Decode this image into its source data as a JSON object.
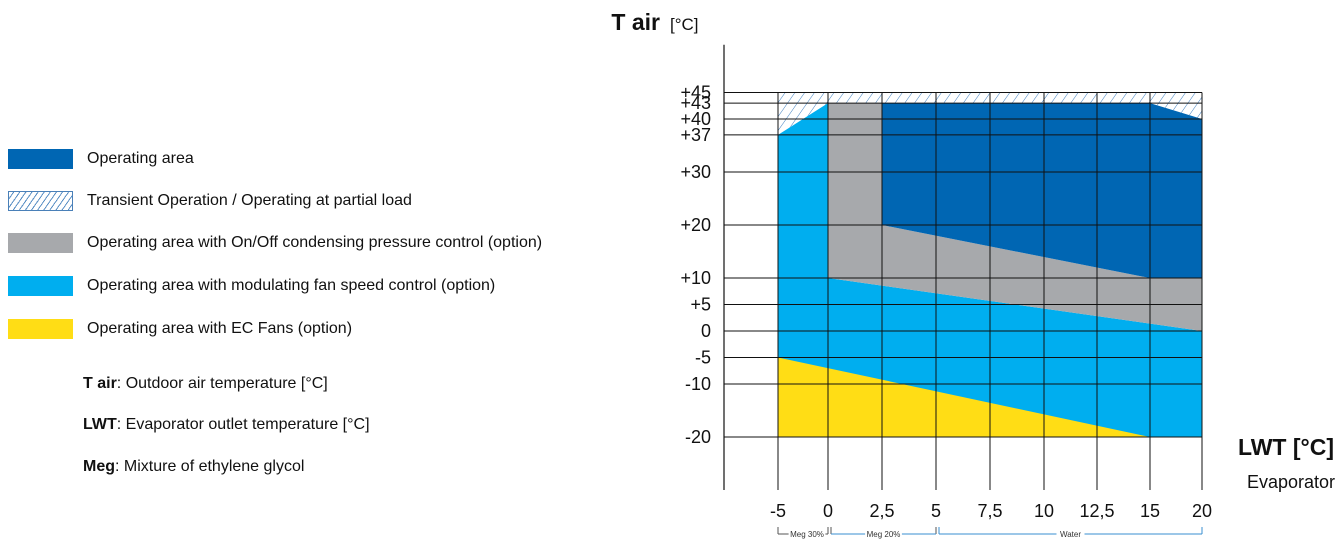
{
  "legend": {
    "items": [
      {
        "label": "Operating area",
        "color": "#0066b3"
      },
      {
        "label": "Transient Operation / Operating at partial load",
        "pattern": "hatch"
      },
      {
        "label": "Operating area with On/Off condensing pressure control (option)",
        "color": "#a7a9ac"
      },
      {
        "label": "Operating area with modulating fan speed control (option)",
        "color": "#00aeef"
      },
      {
        "label": "Operating area with EC Fans (option)",
        "color": "#ffdd15"
      }
    ],
    "notes": [
      {
        "term": "T air",
        "text": ": Outdoor air temperature [°C]"
      },
      {
        "term": "LWT",
        "text": ": Evaporator outlet temperature [°C]"
      },
      {
        "term": "Meg",
        "text": ": Mixture of ethylene glycol"
      }
    ]
  },
  "chart_data": {
    "type": "area",
    "y_title": "T air",
    "y_unit": "[°C]",
    "x_title": "LWT [°C]",
    "x_subtitle": "Evaporator",
    "x_ticks": [
      -5,
      0,
      2.5,
      5,
      7.5,
      10,
      12.5,
      15,
      20
    ],
    "x_tick_labels": [
      "-5",
      "0",
      "2,5",
      "5",
      "7,5",
      "10",
      "12,5",
      "15",
      "20"
    ],
    "y_ticks": [
      45,
      43,
      40,
      37,
      30,
      20,
      10,
      5,
      0,
      -5,
      -10,
      -20
    ],
    "y_tick_labels": [
      "+45",
      "+43",
      "+40",
      "+37",
      "+30",
      "+20",
      "+10",
      "+5",
      "0",
      "-5",
      "-10",
      "-20"
    ],
    "ylim": [
      -30,
      54
    ],
    "grid": true,
    "regions": [
      {
        "label": "Transient Operation / Operating at partial load",
        "pattern": "hatch",
        "points": [
          [
            -5,
            37
          ],
          [
            -5,
            45
          ],
          [
            20,
            45
          ],
          [
            20,
            40
          ],
          [
            15,
            43
          ],
          [
            0,
            43
          ]
        ]
      },
      {
        "label": "Operating area with modulating fan speed control (option)",
        "color": "#00aeef",
        "points": [
          [
            -5,
            -20
          ],
          [
            -5,
            37
          ],
          [
            0,
            43
          ],
          [
            0,
            10
          ],
          [
            20,
            0
          ],
          [
            20,
            -20
          ]
        ]
      },
      {
        "label": "Operating area with On/Off condensing pressure control (option)",
        "color": "#a7a9ac",
        "points": [
          [
            0,
            10
          ],
          [
            0,
            43
          ],
          [
            2.5,
            43
          ],
          [
            2.5,
            20
          ],
          [
            15,
            10
          ],
          [
            20,
            10
          ],
          [
            20,
            0
          ]
        ]
      },
      {
        "label": "Operating area",
        "color": "#0066b3",
        "points": [
          [
            2.5,
            20
          ],
          [
            2.5,
            43
          ],
          [
            15,
            43
          ],
          [
            20,
            40
          ],
          [
            20,
            10
          ],
          [
            15,
            10
          ]
        ]
      },
      {
        "label": "Operating area with EC Fans (option)",
        "color": "#ffdd15",
        "points": [
          [
            -5,
            -20
          ],
          [
            -5,
            -5
          ],
          [
            15,
            -20
          ]
        ]
      }
    ],
    "brackets": [
      {
        "label": "Meg 30%",
        "from": -5,
        "to": 0
      },
      {
        "label": "Meg 20%",
        "from": 0,
        "to": 5
      },
      {
        "label": "Water",
        "from": 5,
        "to": 20
      }
    ]
  }
}
